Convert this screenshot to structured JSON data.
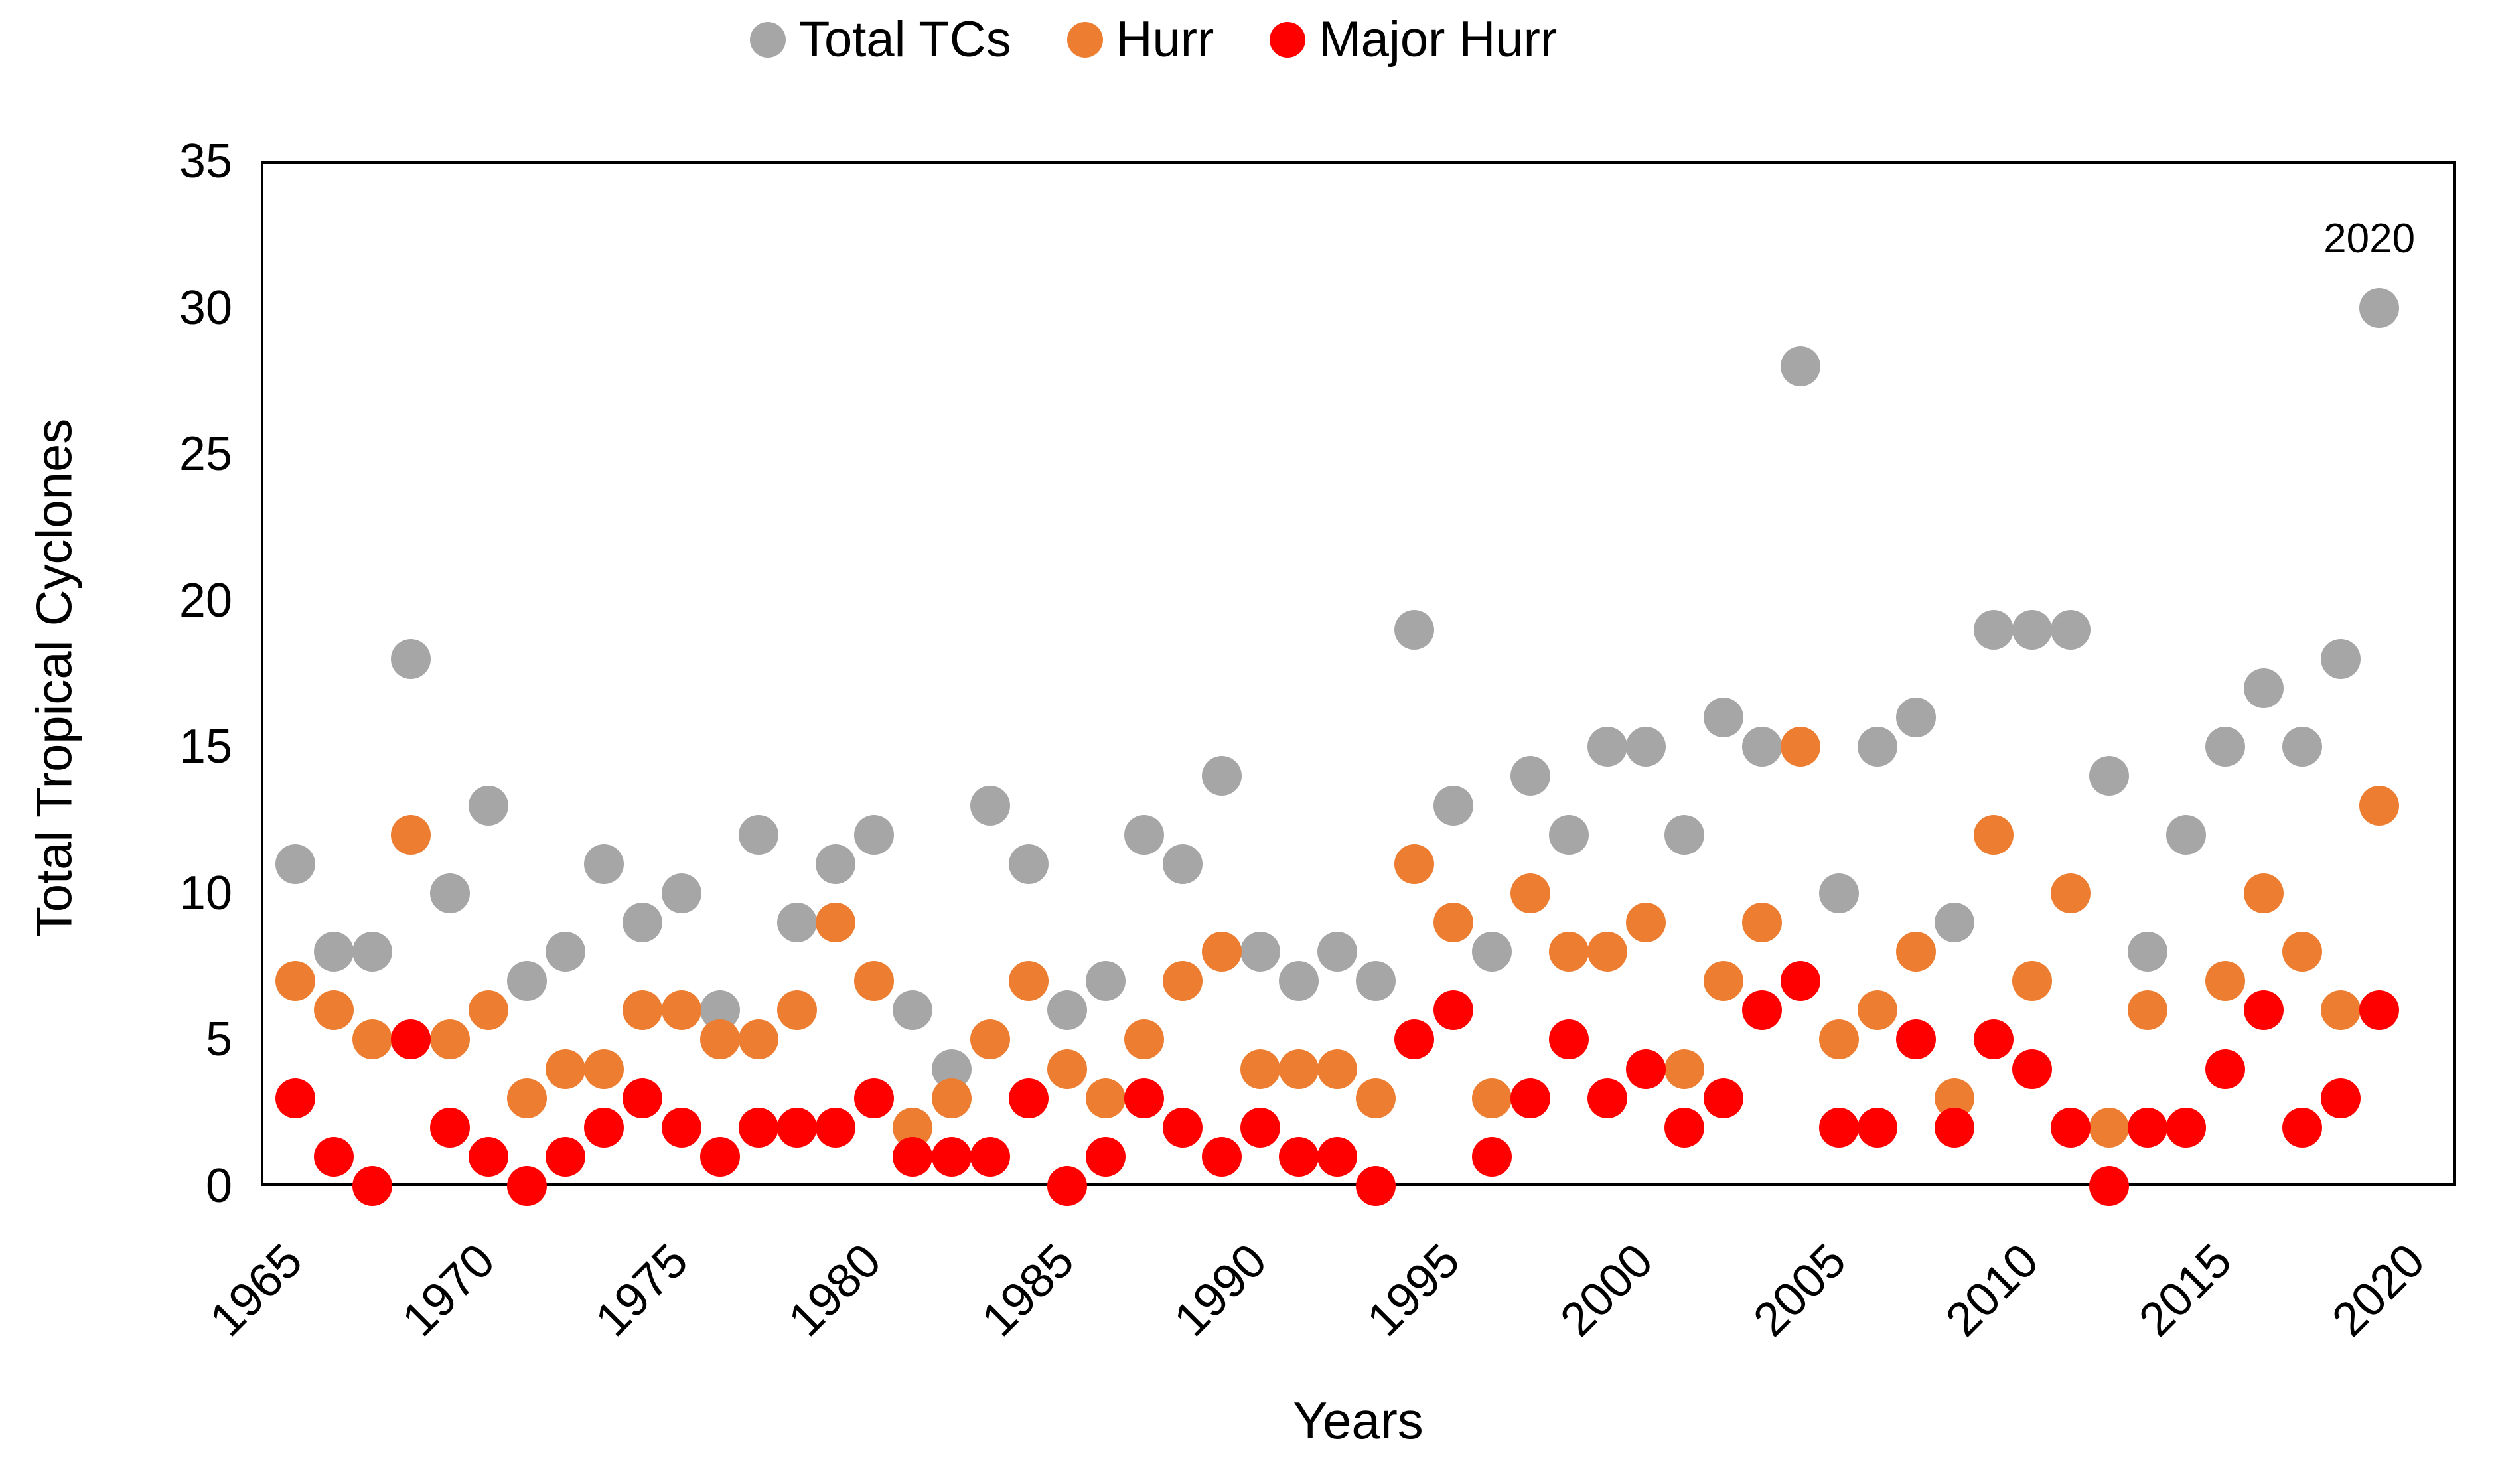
{
  "legend": {
    "items": [
      {
        "label": "Total TCs",
        "color": "#A6A6A6"
      },
      {
        "label": "Hurr",
        "color": "#ED7D31"
      },
      {
        "label": "Major Hurr",
        "color": "#FF0000"
      }
    ]
  },
  "axes": {
    "y_title": "Total Tropical Cyclones",
    "x_title": "Years",
    "y_ticks": [
      0,
      5,
      10,
      15,
      20,
      25,
      30,
      35
    ],
    "x_ticks": [
      1965,
      1970,
      1975,
      1980,
      1985,
      1990,
      1995,
      2000,
      2005,
      2010,
      2015,
      2020
    ]
  },
  "chart_data": {
    "type": "scatter",
    "title": "",
    "xlabel": "Years",
    "ylabel": "Total Tropical Cyclones",
    "xlim": [
      1965,
      2022
    ],
    "ylim": [
      0,
      35
    ],
    "grid": false,
    "legend_position": "top",
    "marker": "circle",
    "x": [
      1966,
      1967,
      1968,
      1969,
      1970,
      1971,
      1972,
      1973,
      1974,
      1975,
      1976,
      1977,
      1978,
      1979,
      1980,
      1981,
      1982,
      1983,
      1984,
      1985,
      1986,
      1987,
      1988,
      1989,
      1990,
      1991,
      1992,
      1993,
      1994,
      1995,
      1996,
      1997,
      1998,
      1999,
      2000,
      2001,
      2002,
      2003,
      2004,
      2005,
      2006,
      2007,
      2008,
      2009,
      2010,
      2011,
      2012,
      2013,
      2014,
      2015,
      2016,
      2017,
      2018,
      2019,
      2020
    ],
    "series": [
      {
        "name": "Total TCs",
        "color": "#A6A6A6",
        "values": [
          11,
          8,
          8,
          18,
          10,
          13,
          7,
          8,
          11,
          9,
          10,
          6,
          12,
          9,
          11,
          12,
          6,
          4,
          13,
          11,
          6,
          7,
          12,
          11,
          14,
          8,
          7,
          8,
          7,
          19,
          13,
          8,
          14,
          12,
          15,
          15,
          12,
          16,
          15,
          28,
          10,
          15,
          16,
          9,
          19,
          19,
          19,
          14,
          8,
          12,
          15,
          17,
          15,
          18,
          30
        ]
      },
      {
        "name": "Hurr",
        "color": "#ED7D31",
        "values": [
          7,
          6,
          5,
          12,
          5,
          6,
          3,
          4,
          4,
          6,
          6,
          5,
          5,
          6,
          9,
          7,
          2,
          3,
          5,
          7,
          4,
          3,
          5,
          7,
          8,
          4,
          4,
          4,
          3,
          11,
          9,
          3,
          10,
          8,
          8,
          9,
          4,
          7,
          9,
          15,
          5,
          6,
          8,
          3,
          12,
          7,
          10,
          2,
          6,
          2,
          7,
          10,
          8,
          6,
          13
        ]
      },
      {
        "name": "Major Hurr",
        "color": "#FF0000",
        "values": [
          3,
          1,
          0,
          5,
          2,
          1,
          0,
          1,
          2,
          3,
          2,
          1,
          2,
          2,
          2,
          3,
          1,
          1,
          1,
          3,
          0,
          1,
          3,
          2,
          1,
          2,
          1,
          1,
          0,
          5,
          6,
          1,
          3,
          5,
          3,
          4,
          2,
          3,
          6,
          7,
          2,
          2,
          5,
          2,
          5,
          4,
          2,
          0,
          2,
          2,
          4,
          6,
          2,
          3,
          6
        ]
      }
    ],
    "annotations": [
      {
        "text": "2020",
        "x": 2020,
        "y": 30,
        "series": "Total TCs"
      }
    ]
  }
}
